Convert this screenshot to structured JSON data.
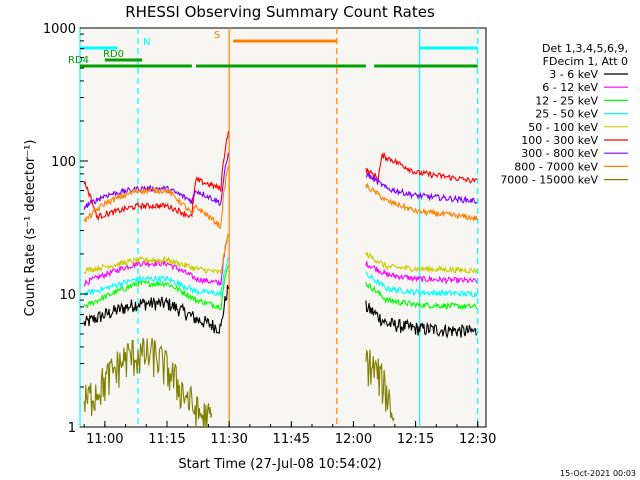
{
  "chart_data": {
    "type": "line",
    "title": "RHESSI Observing Summary Count Rates",
    "xlabel": "Start Time (27-Jul-08 10:54:02)",
    "ylabel": "Count Rate (s⁻¹ detector⁻¹)",
    "xlim": [
      "10:54",
      "12:32"
    ],
    "ylim": [
      1,
      1000
    ],
    "yscale": "log",
    "x_ticks": [
      "11:00",
      "11:15",
      "11:30",
      "11:45",
      "12:00",
      "12:15",
      "12:30"
    ],
    "y_ticks": [
      "1",
      "10",
      "100",
      "1000"
    ],
    "legend_position": "right",
    "legend_header": [
      "Det 1,3,4,5,6,9,",
      "FDecim 1, Att 0"
    ],
    "footer": "15-Oct-2021 00:03",
    "gap": {
      "start": "11:31",
      "end": "12:03"
    },
    "series": [
      {
        "name": "3 - 6 keV",
        "color": "#000000",
        "pre": [
          [
            "10:55",
            6
          ],
          [
            "11:00",
            7
          ],
          [
            "11:08",
            8.5
          ],
          [
            "11:15",
            8.5
          ],
          [
            "11:22",
            6.5
          ],
          [
            "11:28",
            5.5
          ],
          [
            "11:30",
            12
          ]
        ],
        "post": [
          [
            "12:03",
            8
          ],
          [
            "12:08",
            6
          ],
          [
            "12:15",
            5.5
          ],
          [
            "12:30",
            5.2
          ]
        ]
      },
      {
        "name": "6 - 12 keV",
        "color": "#ff00ff",
        "pre": [
          [
            "10:55",
            12
          ],
          [
            "11:00",
            14
          ],
          [
            "11:08",
            17
          ],
          [
            "11:15",
            17
          ],
          [
            "11:22",
            13
          ],
          [
            "11:28",
            12
          ],
          [
            "11:30",
            30
          ]
        ],
        "post": [
          [
            "12:03",
            17
          ],
          [
            "12:08",
            14
          ],
          [
            "12:15",
            13
          ],
          [
            "12:30",
            12.5
          ]
        ]
      },
      {
        "name": "12 - 25 keV",
        "color": "#00ff00",
        "pre": [
          [
            "10:55",
            8
          ],
          [
            "11:00",
            9.5
          ],
          [
            "11:08",
            12
          ],
          [
            "11:15",
            12
          ],
          [
            "11:22",
            9
          ],
          [
            "11:28",
            8
          ],
          [
            "11:30",
            18
          ]
        ],
        "post": [
          [
            "12:03",
            12
          ],
          [
            "12:08",
            9
          ],
          [
            "12:15",
            8.3
          ],
          [
            "12:30",
            8
          ]
        ]
      },
      {
        "name": "25 - 50 keV",
        "color": "#00ffff",
        "pre": [
          [
            "10:55",
            10
          ],
          [
            "11:00",
            11
          ],
          [
            "11:08",
            13
          ],
          [
            "11:15",
            13
          ],
          [
            "11:22",
            10.5
          ],
          [
            "11:28",
            10
          ],
          [
            "11:30",
            20
          ]
        ],
        "post": [
          [
            "12:03",
            14
          ],
          [
            "12:08",
            11
          ],
          [
            "12:15",
            10.3
          ],
          [
            "12:30",
            10
          ]
        ]
      },
      {
        "name": "50 - 100 keV",
        "color": "#cccc00",
        "pre": [
          [
            "10:55",
            15
          ],
          [
            "11:00",
            16
          ],
          [
            "11:08",
            18
          ],
          [
            "11:15",
            18
          ],
          [
            "11:22",
            15.5
          ],
          [
            "11:28",
            14.5
          ],
          [
            "11:30",
            30
          ]
        ],
        "post": [
          [
            "12:03",
            20
          ],
          [
            "12:08",
            16
          ],
          [
            "12:15",
            15.5
          ],
          [
            "12:30",
            15
          ]
        ]
      },
      {
        "name": "100 - 300 keV",
        "color": "#ff0000",
        "pre": [
          [
            "10:55",
            70
          ],
          [
            "10:58",
            38
          ],
          [
            "11:08",
            46
          ],
          [
            "11:15",
            46
          ],
          [
            "11:21",
            38
          ],
          [
            "11:22",
            72
          ],
          [
            "11:28",
            62
          ],
          [
            "11:30",
            180
          ]
        ],
        "post": [
          [
            "12:03",
            85
          ],
          [
            "12:06",
            75
          ],
          [
            "12:07",
            110
          ],
          [
            "12:15",
            82
          ],
          [
            "12:30",
            70
          ]
        ]
      },
      {
        "name": "300 - 800 keV",
        "color": "#8000ff",
        "pre": [
          [
            "10:55",
            45
          ],
          [
            "11:00",
            55
          ],
          [
            "11:08",
            62
          ],
          [
            "11:15",
            62
          ],
          [
            "11:21",
            50
          ],
          [
            "11:22",
            60
          ],
          [
            "11:28",
            48
          ],
          [
            "11:30",
            120
          ]
        ],
        "post": [
          [
            "12:03",
            80
          ],
          [
            "12:08",
            62
          ],
          [
            "12:15",
            55
          ],
          [
            "12:30",
            50
          ]
        ]
      },
      {
        "name": "800 - 7000 keV",
        "color": "#ff8000",
        "pre": [
          [
            "10:55",
            35
          ],
          [
            "11:00",
            48
          ],
          [
            "11:08",
            60
          ],
          [
            "11:15",
            60
          ],
          [
            "11:21",
            40
          ],
          [
            "11:22",
            45
          ],
          [
            "11:28",
            32
          ],
          [
            "11:30",
            100
          ]
        ],
        "post": [
          [
            "12:03",
            65
          ],
          [
            "12:08",
            50
          ],
          [
            "12:15",
            42
          ],
          [
            "12:30",
            37
          ]
        ]
      },
      {
        "name": "7000 - 15000 keV",
        "color": "#808000",
        "pre": [
          [
            "10:55",
            1.5
          ],
          [
            "11:00",
            2.2
          ],
          [
            "11:06",
            3.5
          ],
          [
            "11:12",
            3.5
          ],
          [
            "11:18",
            2
          ],
          [
            "11:22",
            1.3
          ],
          [
            "11:26",
            1.1
          ]
        ],
        "post": [
          [
            "12:03",
            3.2
          ],
          [
            "12:06",
            2.5
          ],
          [
            "12:09",
            1.5
          ],
          [
            "12:10",
            1
          ]
        ]
      }
    ],
    "annotations": [
      {
        "label": "N",
        "color": "#00ffff",
        "bars": [
          [
            "10:54",
            "11:03"
          ],
          [
            "12:16",
            "12:30"
          ]
        ]
      },
      {
        "label": "RD0",
        "color": "#00a000",
        "bars": [
          [
            "11:00",
            "11:09"
          ]
        ]
      },
      {
        "label": "RD4",
        "color": "#00a000",
        "bars": [
          [
            "10:54",
            "11:21"
          ],
          [
            "11:22",
            "11:57"
          ],
          [
            "11:57",
            "12:03"
          ],
          [
            "12:05",
            "12:30"
          ]
        ]
      },
      {
        "label": "S",
        "color": "#ff8000",
        "bars": [
          [
            "11:31",
            "11:56"
          ]
        ]
      }
    ],
    "vertical_markers": [
      {
        "x": "10:54",
        "color": "#00ffff",
        "style": "solid"
      },
      {
        "x": "11:08",
        "color": "#00ffff",
        "style": "dashed"
      },
      {
        "x": "11:30",
        "color": "#ff8000",
        "style": "solid"
      },
      {
        "x": "11:56",
        "color": "#ff8000",
        "style": "dashed"
      },
      {
        "x": "12:16",
        "color": "#00ffff",
        "style": "solid"
      },
      {
        "x": "12:30",
        "color": "#00ffff",
        "style": "dashed"
      }
    ]
  }
}
